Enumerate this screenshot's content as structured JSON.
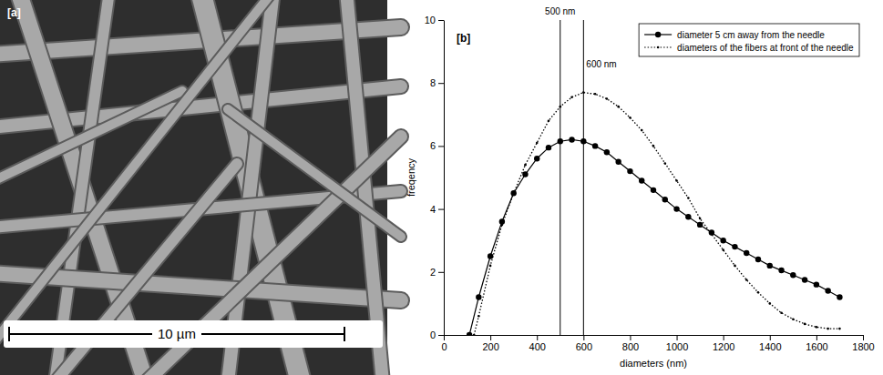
{
  "image": {
    "panel_label": "[a]",
    "scale_bar_label": "10 µm"
  },
  "chart_data": {
    "type": "line",
    "panel_label": "[b]",
    "x_label": "diameters (nm)",
    "y_label": "freqency",
    "xlim": [
      0,
      1800
    ],
    "xticks": [
      0,
      200,
      400,
      600,
      800,
      1000,
      1200,
      1400,
      1600,
      1800
    ],
    "ylim": [
      0,
      10
    ],
    "yticks": [
      0,
      2,
      4,
      6,
      8,
      10
    ],
    "grid": false,
    "legend": "top-right",
    "annotations": [
      {
        "x": 500,
        "label": "500 nm"
      },
      {
        "x": 600,
        "label": "600 nm"
      }
    ],
    "series": [
      {
        "name": "diameter 5 cm away from the needle",
        "color": "#000000",
        "marker": "circle",
        "line_style": "solid",
        "x": [
          110,
          150,
          200,
          250,
          300,
          350,
          400,
          450,
          500,
          550,
          600,
          650,
          700,
          750,
          800,
          850,
          900,
          950,
          1000,
          1050,
          1100,
          1150,
          1200,
          1250,
          1300,
          1350,
          1400,
          1450,
          1500,
          1550,
          1600,
          1650,
          1700
        ],
        "values": [
          0,
          1.2,
          2.5,
          3.6,
          4.5,
          5.1,
          5.6,
          5.95,
          6.15,
          6.2,
          6.15,
          6.0,
          5.8,
          5.5,
          5.2,
          4.9,
          4.6,
          4.3,
          4.0,
          3.75,
          3.5,
          3.25,
          3.0,
          2.8,
          2.6,
          2.4,
          2.2,
          2.05,
          1.9,
          1.75,
          1.6,
          1.4,
          1.2
        ]
      },
      {
        "name": "diameters of the fibers at front of the needle",
        "color": "#000000",
        "marker": "point",
        "line_style": "dotted",
        "x": [
          130,
          150,
          200,
          250,
          300,
          350,
          400,
          450,
          500,
          550,
          600,
          650,
          700,
          750,
          800,
          850,
          900,
          950,
          1000,
          1050,
          1100,
          1150,
          1200,
          1250,
          1300,
          1350,
          1400,
          1450,
          1500,
          1550,
          1600,
          1650,
          1700
        ],
        "values": [
          0,
          0.6,
          2.2,
          3.5,
          4.5,
          5.4,
          6.1,
          6.8,
          7.25,
          7.55,
          7.7,
          7.65,
          7.5,
          7.25,
          6.9,
          6.5,
          6.0,
          5.45,
          4.9,
          4.35,
          3.7,
          3.2,
          2.7,
          2.2,
          1.75,
          1.35,
          1.0,
          0.7,
          0.5,
          0.35,
          0.25,
          0.2,
          0.2
        ]
      }
    ]
  }
}
